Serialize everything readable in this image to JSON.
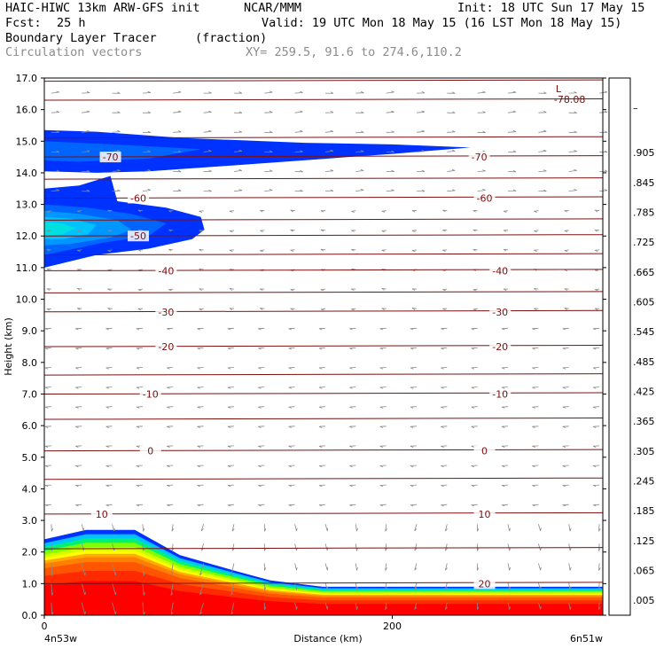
{
  "header": {
    "model": "HAIC-HIWC 13km ARW-GFS init",
    "org": "NCAR/MMM",
    "init": "Init: 18 UTC Sun 17 May 15",
    "fcst_label": "Fcst:",
    "fcst_value": "25 h",
    "valid": "Valid: 19 UTC Mon 18 May 15 (16 LST Mon 18 May 15)",
    "field": "Boundary Layer Tracer",
    "field_units": "(fraction)",
    "vectors": "Circulation vectors",
    "xy": "XY= 259.5, 91.6 to 274.6,110.2"
  },
  "colors": {
    "contour": "#7a1010",
    "vector": "#8a8a8a",
    "scale": [
      "#ffffff",
      "#ff0000",
      "#ff2a00",
      "#ff5500",
      "#ff7f00",
      "#ffaa00",
      "#ffd200",
      "#ffff00",
      "#d2ff00",
      "#aaff00",
      "#7fff00",
      "#2bff00",
      "#00f07a",
      "#00e0e0",
      "#00c3ff",
      "#0096ff",
      "#0064ff",
      "#0032ff"
    ]
  },
  "chart_data": {
    "type": "heatmap",
    "ylabel": "Height (km)",
    "xlabel": "Distance (km)",
    "x_end_labels": [
      "4n53w",
      "6n51w"
    ],
    "xlim": [
      0,
      321
    ],
    "ylim": [
      0,
      17
    ],
    "x_ticks": [
      0,
      200
    ],
    "y_ticks": [
      0.0,
      1.0,
      2.0,
      3.0,
      4.0,
      5.0,
      6.0,
      7.0,
      8.0,
      9.0,
      10.0,
      11.0,
      12.0,
      13.0,
      14.0,
      15.0,
      16.0,
      17.0
    ],
    "y_tick_labels": [
      "0.0",
      "1.0",
      "2.0",
      "3.0",
      "4.0",
      "5.0",
      "6.0",
      "7.0",
      "8.0",
      "9.0",
      "10.0",
      "11.0",
      "12.0",
      "13.0",
      "14.0",
      "15.0",
      "16.0",
      "17.0"
    ],
    "colorbar_labels": [
      ".005",
      ".065",
      ".125",
      ".185",
      ".245",
      ".305",
      ".365",
      ".425",
      ".485",
      ".545",
      ".605",
      ".665",
      ".725",
      ".785",
      ".845",
      ".905",
      "–"
    ],
    "temperature_contours": [
      {
        "label": "-70",
        "y": 14.5,
        "label_x": [
          38,
          250
        ]
      },
      {
        "label": "-60",
        "y": 13.2,
        "label_x": [
          54,
          253
        ]
      },
      {
        "label": "-50",
        "y": 12.0,
        "label_x": [
          54
        ]
      },
      {
        "label": "-40",
        "y": 10.9,
        "label_x": [
          70,
          262
        ]
      },
      {
        "label": "-30",
        "y": 9.6,
        "label_x": [
          70,
          262
        ]
      },
      {
        "label": "-20",
        "y": 8.5,
        "label_x": [
          70,
          262
        ]
      },
      {
        "label": "-10",
        "y": 7.0,
        "label_x": [
          61,
          262
        ]
      },
      {
        "label": "0",
        "y": 5.2,
        "label_x": [
          61,
          253
        ]
      },
      {
        "label": "10",
        "y": 3.2,
        "label_x": [
          33,
          253
        ]
      },
      {
        "label": "20",
        "y": 1.0,
        "label_x": [
          253
        ]
      }
    ],
    "extra_isotherm_heights": [
      16.9,
      16.3,
      15.1,
      13.8,
      12.5,
      11.4,
      10.2,
      7.6,
      6.2,
      4.3,
      2.1
    ],
    "min_marker": {
      "label": "L",
      "value": "-78.08",
      "x": 297,
      "y": 16.5
    },
    "tracer_features": [
      {
        "name": "boundary-layer",
        "top_km": [
          [
            0,
            2.4
          ],
          [
            24,
            2.7
          ],
          [
            52,
            2.7
          ],
          [
            78,
            1.9
          ],
          [
            110,
            1.4
          ],
          [
            130,
            1.1
          ],
          [
            160,
            0.9
          ],
          [
            321,
            0.9
          ]
        ]
      },
      {
        "name": "anvil-upper",
        "extent_km": [
          [
            0,
            15.3
          ],
          [
            245,
            14.8
          ]
        ],
        "value": 0.005
      },
      {
        "name": "anvil-lower",
        "extent_km": [
          [
            0,
            13.5
          ],
          [
            92,
            12.3
          ]
        ],
        "value": 0.125
      }
    ]
  }
}
